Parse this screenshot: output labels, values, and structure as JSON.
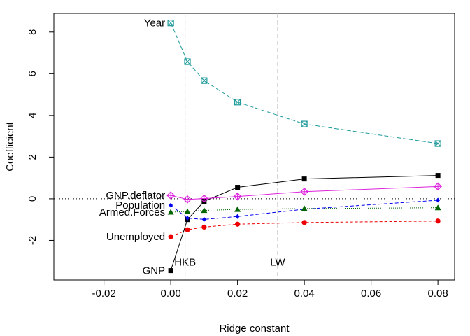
{
  "chart_data": {
    "type": "line",
    "title": "",
    "xlabel": "Ridge constant",
    "ylabel": "Coefficient",
    "xlim": [
      -0.035,
      0.085
    ],
    "ylim": [
      -3.9,
      8.9
    ],
    "xticks": [
      -0.02,
      0.0,
      0.02,
      0.04,
      0.06,
      0.08
    ],
    "xtick_labels": [
      "-0.02",
      "0.00",
      "0.02",
      "0.04",
      "0.06",
      "0.08"
    ],
    "yticks": [
      -2,
      0,
      2,
      4,
      6,
      8
    ],
    "ytick_labels": [
      "-2",
      "0",
      "2",
      "4",
      "6",
      "8"
    ],
    "x": [
      0.0,
      0.005,
      0.01,
      0.02,
      0.04,
      0.08
    ],
    "reference_lines": [
      {
        "name": "HKB",
        "x": 0.0043,
        "label": "HKB"
      },
      {
        "name": "LW",
        "x": 0.032,
        "label": "LW"
      }
    ],
    "zero_line": true,
    "series": [
      {
        "name": "Year",
        "label": "Year",
        "color": "#1e9a9a",
        "marker": "square-x",
        "values": [
          8.44,
          6.58,
          5.67,
          4.64,
          3.59,
          2.65
        ]
      },
      {
        "name": "GNP",
        "label": "GNP",
        "color": "#000000",
        "marker": "filled-square",
        "values": [
          -3.45,
          -1.0,
          -0.12,
          0.55,
          0.95,
          1.12
        ]
      },
      {
        "name": "GNP.deflator",
        "label": "GNP.deflator",
        "color": "#dd22dd",
        "marker": "diamond-plus",
        "values": [
          0.16,
          -0.03,
          0.01,
          0.11,
          0.34,
          0.59
        ]
      },
      {
        "name": "Population",
        "label": "Population",
        "color": "#0000ee",
        "marker": "filled-diamond",
        "values": [
          -0.31,
          -0.93,
          -0.99,
          -0.85,
          -0.5,
          -0.07
        ]
      },
      {
        "name": "Armed.Forces",
        "label": "Armed.Forces",
        "color": "#006400",
        "marker": "filled-triangle",
        "values": [
          -0.64,
          -0.61,
          -0.56,
          -0.51,
          -0.47,
          -0.43
        ]
      },
      {
        "name": "Unemployed",
        "label": "Unemployed",
        "color": "#ee0000",
        "marker": "filled-circle",
        "values": [
          -1.82,
          -1.49,
          -1.36,
          -1.22,
          -1.14,
          -1.07
        ]
      }
    ]
  }
}
